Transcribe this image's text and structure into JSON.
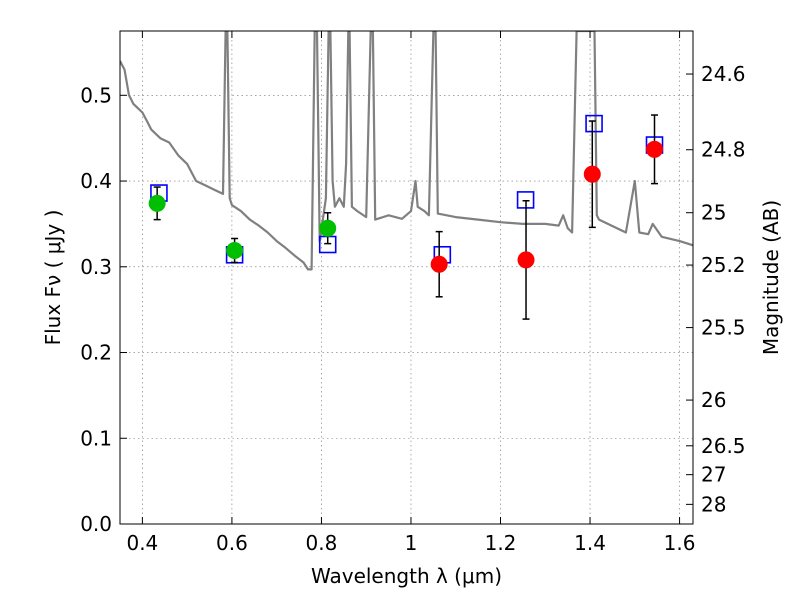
{
  "chart_data": {
    "type": "scatter",
    "title": "",
    "xlabel": "Wavelength  λ (μm)",
    "ylabel": "Flux  Fν  ( μJy )",
    "ylabel_right": "Magnitude (AB)",
    "xlim": [
      0.35,
      1.63
    ],
    "ylim": [
      0.0,
      0.575
    ],
    "grid": true,
    "x_ticks": [
      0.4,
      0.6,
      0.8,
      1.0,
      1.2,
      1.4,
      1.6
    ],
    "x_tick_labels": [
      "0.4",
      "0.6",
      "0.8",
      "1",
      "1.2",
      "1.4",
      "1.6"
    ],
    "y_ticks": [
      0.0,
      0.1,
      0.2,
      0.3,
      0.4,
      0.5
    ],
    "y_tick_labels": [
      "0.0",
      "0.1",
      "0.2",
      "0.3",
      "0.4",
      "0.5"
    ],
    "right_ticks": [
      {
        "mag": 24.6,
        "label": "24.6"
      },
      {
        "mag": 24.8,
        "label": "24.8"
      },
      {
        "mag": 25.0,
        "label": "25"
      },
      {
        "mag": 25.2,
        "label": "25.2"
      },
      {
        "mag": 25.5,
        "label": "25.5"
      },
      {
        "mag": 26.0,
        "label": "26"
      },
      {
        "mag": 26.5,
        "label": "26.5"
      },
      {
        "mag": 27.0,
        "label": "27"
      },
      {
        "mag": 28.0,
        "label": "28"
      }
    ],
    "series": [
      {
        "kind": "model",
        "color": "#808080",
        "points": [
          [
            0.35,
            0.54
          ],
          [
            0.36,
            0.53
          ],
          [
            0.37,
            0.5
          ],
          [
            0.38,
            0.49
          ],
          [
            0.39,
            0.485
          ],
          [
            0.4,
            0.48
          ],
          [
            0.41,
            0.47
          ],
          [
            0.42,
            0.46
          ],
          [
            0.44,
            0.45
          ],
          [
            0.46,
            0.445
          ],
          [
            0.48,
            0.43
          ],
          [
            0.5,
            0.42
          ],
          [
            0.52,
            0.4
          ],
          [
            0.54,
            0.395
          ],
          [
            0.56,
            0.39
          ],
          [
            0.58,
            0.385
          ],
          [
            0.586,
            0.575
          ],
          [
            0.59,
            0.575
          ],
          [
            0.595,
            0.38
          ],
          [
            0.6,
            0.372
          ],
          [
            0.62,
            0.365
          ],
          [
            0.64,
            0.355
          ],
          [
            0.66,
            0.348
          ],
          [
            0.68,
            0.34
          ],
          [
            0.7,
            0.33
          ],
          [
            0.72,
            0.322
          ],
          [
            0.74,
            0.313
          ],
          [
            0.76,
            0.305
          ],
          [
            0.77,
            0.297
          ],
          [
            0.778,
            0.297
          ],
          [
            0.785,
            0.575
          ],
          [
            0.79,
            0.575
          ],
          [
            0.796,
            0.33
          ],
          [
            0.81,
            0.38
          ],
          [
            0.816,
            0.575
          ],
          [
            0.82,
            0.575
          ],
          [
            0.825,
            0.4
          ],
          [
            0.83,
            0.37
          ],
          [
            0.84,
            0.38
          ],
          [
            0.85,
            0.37
          ],
          [
            0.855,
            0.42
          ],
          [
            0.86,
            0.575
          ],
          [
            0.863,
            0.575
          ],
          [
            0.868,
            0.37
          ],
          [
            0.88,
            0.365
          ],
          [
            0.9,
            0.358
          ],
          [
            0.91,
            0.575
          ],
          [
            0.915,
            0.575
          ],
          [
            0.92,
            0.355
          ],
          [
            0.95,
            0.36
          ],
          [
            0.98,
            0.356
          ],
          [
            1.0,
            0.365
          ],
          [
            1.01,
            0.4
          ],
          [
            1.015,
            0.37
          ],
          [
            1.03,
            0.365
          ],
          [
            1.04,
            0.36
          ],
          [
            1.05,
            0.575
          ],
          [
            1.055,
            0.575
          ],
          [
            1.06,
            0.362
          ],
          [
            1.1,
            0.358
          ],
          [
            1.15,
            0.355
          ],
          [
            1.2,
            0.352
          ],
          [
            1.25,
            0.35
          ],
          [
            1.3,
            0.35
          ],
          [
            1.33,
            0.348
          ],
          [
            1.34,
            0.36
          ],
          [
            1.35,
            0.345
          ],
          [
            1.36,
            0.34
          ],
          [
            1.37,
            0.575
          ],
          [
            1.38,
            0.575
          ],
          [
            1.39,
            0.575
          ],
          [
            1.4,
            0.575
          ],
          [
            1.41,
            0.575
          ],
          [
            1.415,
            0.36
          ],
          [
            1.42,
            0.355
          ],
          [
            1.48,
            0.34
          ],
          [
            1.5,
            0.4
          ],
          [
            1.51,
            0.34
          ],
          [
            1.53,
            0.338
          ],
          [
            1.54,
            0.35
          ],
          [
            1.56,
            0.335
          ],
          [
            1.6,
            0.33
          ],
          [
            1.63,
            0.325
          ]
        ]
      },
      {
        "kind": "model_flux",
        "marker": "square",
        "color": "#0000ff",
        "points": [
          [
            0.437,
            0.386
          ],
          [
            0.606,
            0.314
          ],
          [
            0.814,
            0.326
          ],
          [
            1.07,
            0.314
          ],
          [
            1.256,
            0.378
          ],
          [
            1.409,
            0.467
          ],
          [
            1.544,
            0.442
          ]
        ]
      },
      {
        "kind": "observed_optical",
        "marker": "circle",
        "color": "#00bf00",
        "points": [
          {
            "x": 0.433,
            "y": 0.374,
            "err": 0.019
          },
          {
            "x": 0.606,
            "y": 0.319,
            "err": 0.014
          },
          {
            "x": 0.814,
            "y": 0.345,
            "err": 0.018
          }
        ]
      },
      {
        "kind": "observed_nir",
        "marker": "circle",
        "color": "#ff0000",
        "points": [
          {
            "x": 1.063,
            "y": 0.303,
            "err": 0.038
          },
          {
            "x": 1.257,
            "y": 0.308,
            "err": 0.069
          },
          {
            "x": 1.405,
            "y": 0.408,
            "err": 0.062
          },
          {
            "x": 1.544,
            "y": 0.437,
            "err": 0.04
          }
        ]
      }
    ]
  }
}
